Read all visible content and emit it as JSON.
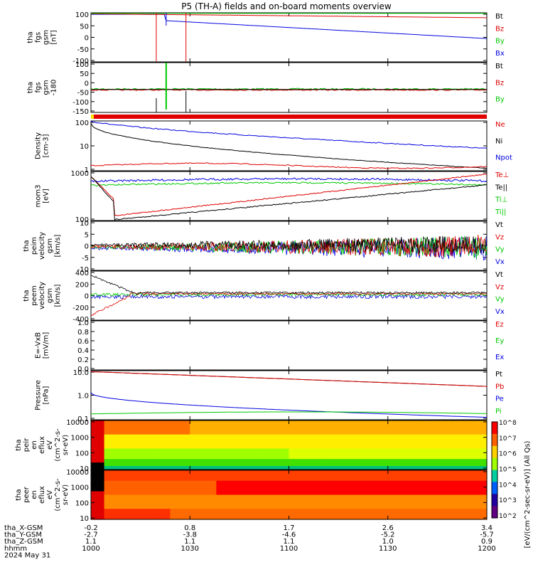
{
  "title": "P5 (TH-A) fields and on-board moments overview",
  "colors": {
    "black": "#000000",
    "red": "#e00000",
    "green": "#00c800",
    "blue": "#0000e0",
    "axis": "#000000"
  },
  "footer": {
    "row_labels": [
      "tha_X-GSM",
      "tha_Y-GSM",
      "tha_Z-GSM",
      "hhmm",
      "2024 May 31"
    ],
    "columns": [
      {
        "x": "-0.2",
        "y": "-2.7",
        "z": "1.1",
        "hhmm": "1000"
      },
      {
        "x": "0.8",
        "y": "-3.8",
        "z": "1.1",
        "hhmm": "1030"
      },
      {
        "x": "1.7",
        "y": "-4.6",
        "z": "1.1",
        "hhmm": "1100"
      },
      {
        "x": "2.6",
        "y": "-5.2",
        "z": "1.0",
        "hhmm": "1130"
      },
      {
        "x": "3.4",
        "y": "-5.7",
        "z": "0.9",
        "hhmm": "1200"
      }
    ]
  },
  "colorbar": {
    "label": "[eV/(cm^2-sec-sr-eV)] (All Qs)",
    "ticks": [
      "10^8",
      "10^7",
      "10^6",
      "10^5",
      "10^4",
      "10^3",
      "10^2"
    ]
  },
  "chart_data": [
    {
      "type": "line",
      "id": "fgs_gsm",
      "ylabel": [
        "tha",
        "fgs",
        "gsm",
        "[nT]"
      ],
      "yticks": [
        "100",
        "50",
        "0",
        "-50",
        "-100"
      ],
      "ylim": [
        -100,
        100
      ],
      "legend": [
        {
          "name": "Bt",
          "color": "black"
        },
        {
          "name": "Bz",
          "color": "red"
        },
        {
          "name": "By",
          "color": "green"
        },
        {
          "name": "Bx",
          "color": "blue"
        }
      ],
      "series_shape": "Bx near 100 -> ~50 at 10:20 decreasing to ~0 at 12:00; Bz ~ 85-100; large spikes at 10:20 and 10:28"
    },
    {
      "type": "line",
      "id": "fgs_gsm_zoom",
      "ylabel": [
        "tha",
        "fgs",
        "gsm",
        "-180"
      ],
      "yticks": [
        "100",
        "50",
        "0",
        "-50",
        "-100",
        "-150"
      ],
      "ylim": [
        -160,
        100
      ],
      "legend": [
        {
          "name": "Bt",
          "color": "black"
        },
        {
          "name": "Bz",
          "color": "red"
        },
        {
          "name": "By",
          "color": "green"
        }
      ],
      "series_shape": "all components near 0 with dips to -150 at 10:20-10:28"
    },
    {
      "type": "line",
      "id": "density",
      "yscale": "log",
      "ylabel": [
        "Density",
        "[cm-3]"
      ],
      "yticks": [
        "100",
        "10",
        "1"
      ],
      "ylim": [
        1,
        100
      ],
      "legend": [
        {
          "name": "Ne",
          "color": "red"
        },
        {
          "name": "Ni",
          "color": "black"
        },
        {
          "name": "Npot",
          "color": "blue"
        }
      ],
      "series_shape": "Npot ~100 decaying to ~4; Ni ~80 decaying to ~1.2; Ne ~1"
    },
    {
      "type": "line",
      "id": "temperature",
      "yscale": "log",
      "ylabel": [
        "mom3",
        "[eV]"
      ],
      "yticks": [
        "1000",
        "100"
      ],
      "ylim": [
        60,
        3000
      ],
      "legend": [
        {
          "name": "Te⊥",
          "color": "red"
        },
        {
          "name": "Te||",
          "color": "black"
        },
        {
          "name": "Ti⊥",
          "color": "green"
        },
        {
          "name": "Ti||",
          "color": "green"
        }
      ],
      "series_shape": "Ti ~1500-2500; Te dips to ~80 at 10:20 then rises to ~800 at 12:00"
    },
    {
      "type": "line",
      "id": "peim_velocity",
      "ylabel": [
        "tha",
        "peim",
        "velocity",
        "gsm",
        "[km/s]"
      ],
      "yticks": [
        "10",
        "5",
        "0",
        "-5",
        "-10"
      ],
      "ylim": [
        -12,
        14
      ],
      "legend": [
        {
          "name": "Vt",
          "color": "black"
        },
        {
          "name": "Vz",
          "color": "red"
        },
        {
          "name": "Vy",
          "color": "green"
        },
        {
          "name": "Vx",
          "color": "blue"
        }
      ],
      "series_shape": "near 0 with growing fluctuations up to +/-10 after 11:00"
    },
    {
      "type": "line",
      "id": "peem_velocity",
      "ylabel": [
        "tha",
        "peem",
        "velocity",
        "gsm",
        "[km/s]"
      ],
      "yticks": [
        "400",
        "200",
        "0",
        "-200",
        "-400"
      ],
      "ylim": [
        -430,
        430
      ],
      "legend": [
        {
          "name": "Vt",
          "color": "black"
        },
        {
          "name": "Vz",
          "color": "red"
        },
        {
          "name": "Vy",
          "color": "green"
        },
        {
          "name": "Vx",
          "color": "blue"
        }
      ],
      "series_shape": "Vt ~350 at start decaying to ~50 by 10:20; Vz ~-350 rising to 0; then small values"
    },
    {
      "type": "line",
      "id": "efield",
      "ylabel": [
        "E=-VxB",
        "[mV/m]"
      ],
      "yticks": [
        "1.0",
        "0.8",
        "0.6",
        "0.4",
        "0.2",
        "0.0"
      ],
      "ylim": [
        0,
        1
      ],
      "legend": [
        {
          "name": "Ez",
          "color": "red"
        },
        {
          "name": "Ey",
          "color": "green"
        },
        {
          "name": "Ex",
          "color": "blue"
        }
      ],
      "series_shape": "no data shown"
    },
    {
      "type": "line",
      "id": "pressure",
      "yscale": "log",
      "ylabel": [
        "Pressure",
        "[nPa]"
      ],
      "yticks": [
        "10.0",
        "1.0",
        "0.1"
      ],
      "ylim": [
        0.05,
        30
      ],
      "legend": [
        {
          "name": "Pt",
          "color": "black"
        },
        {
          "name": "Pb",
          "color": "red"
        },
        {
          "name": "Pe",
          "color": "blue"
        },
        {
          "name": "Pi",
          "color": "green"
        }
      ],
      "series_shape": "Pt/Pb ~30 decreasing to ~7; Pe ~2.5 decaying to ~0.3; Pi ~0.1 to ~0.2"
    },
    {
      "type": "heatmap",
      "id": "peir_en_eflux",
      "ylabel": [
        "tha",
        "peir",
        "en",
        "eflux",
        "eV",
        "(cm^2-s-",
        "sr-eV)"
      ],
      "yticks": [
        "10000",
        "1000",
        "100",
        "10"
      ],
      "ylim": [
        5,
        25000
      ]
    },
    {
      "type": "heatmap",
      "id": "peer_en_eflux",
      "ylabel": [
        "tha",
        "peer",
        "en",
        "eflux",
        "eV",
        "(cm^2-s-",
        "sr-eV)"
      ],
      "yticks": [
        "10000",
        "1000",
        "100",
        "10"
      ],
      "ylim": [
        5,
        25000
      ]
    }
  ]
}
